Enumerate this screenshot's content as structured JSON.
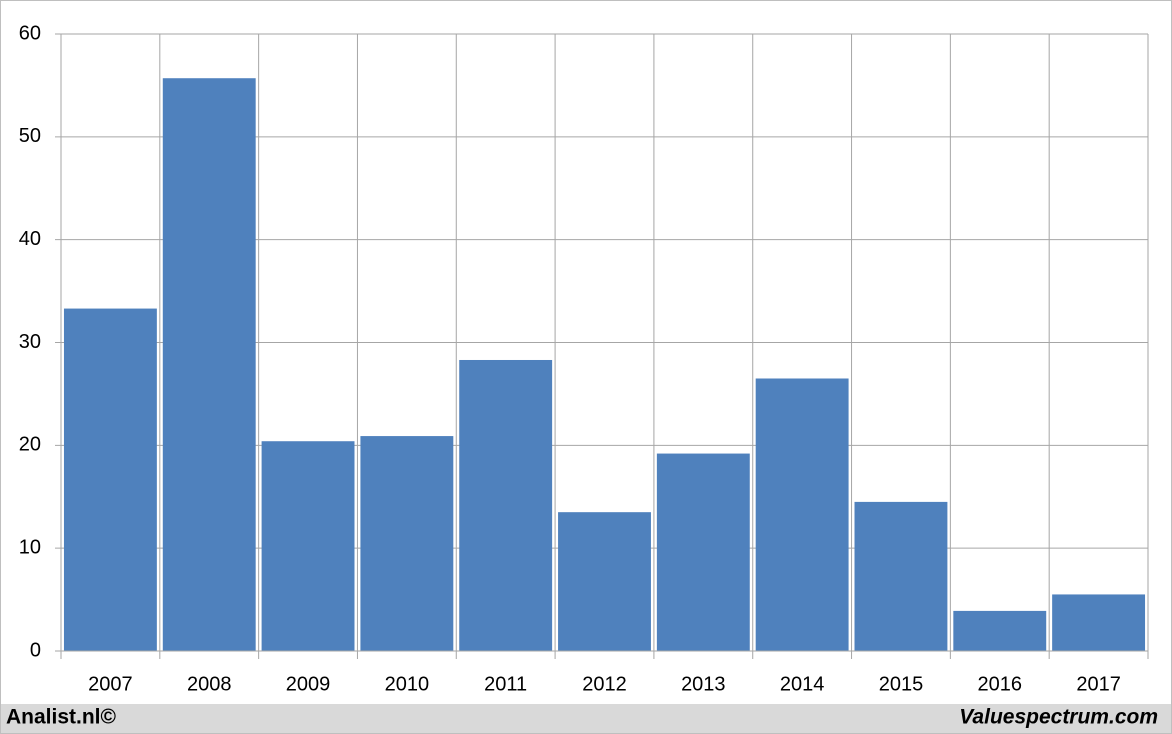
{
  "chart_data": {
    "type": "bar",
    "categories": [
      "2007",
      "2008",
      "2009",
      "2010",
      "2011",
      "2012",
      "2013",
      "2014",
      "2015",
      "2016",
      "2017"
    ],
    "values": [
      33.3,
      55.7,
      20.4,
      20.9,
      28.3,
      13.5,
      19.2,
      26.5,
      14.5,
      3.9,
      5.5
    ],
    "color": "#4f81bd",
    "ylim": [
      0,
      60
    ],
    "yticks": [
      0,
      10,
      20,
      30,
      40,
      50,
      60
    ],
    "grid": true,
    "source": "Analist.nl©",
    "watermark": "Valuespectrum.com"
  }
}
